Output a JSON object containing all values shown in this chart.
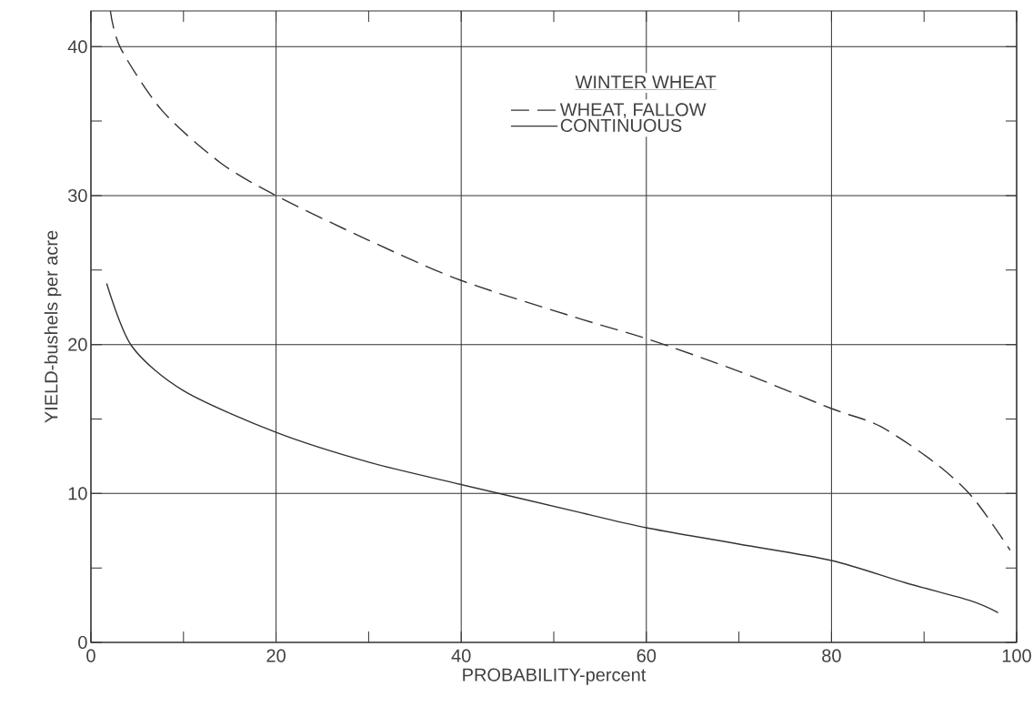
{
  "chart_data": {
    "type": "line",
    "xlabel": "PROBABILITY-percent",
    "ylabel": "YIELD-bushels per acre",
    "legend_title": "WINTER WHEAT",
    "legend": "top",
    "grid": true,
    "xlim": [
      0,
      100
    ],
    "ylim": [
      0,
      42.4
    ],
    "xticks": [
      0,
      20,
      40,
      60,
      80,
      100
    ],
    "yticks": [
      0,
      10,
      20,
      30,
      40
    ],
    "series": [
      {
        "name": "WHEAT, FALLOW",
        "color": "#333333",
        "line_style": "dashed",
        "x": [
          2.1,
          3.2,
          7.7,
          14,
          20,
          30,
          40,
          53,
          60,
          70,
          80,
          85.3,
          91.3,
          95.3,
          99.3
        ],
        "values": [
          42.4,
          39.9,
          35.7,
          32.2,
          30.0,
          27.0,
          24.3,
          21.7,
          20.4,
          18.2,
          15.7,
          14.5,
          12.0,
          9.7,
          6.2
        ]
      },
      {
        "name": "CONTINUOUS",
        "color": "#333333",
        "line_style": "solid",
        "x": [
          1.7,
          4.4,
          10,
          20,
          30,
          40,
          53,
          60,
          70,
          80,
          88,
          95,
          98
        ],
        "values": [
          24.1,
          19.9,
          16.9,
          14.1,
          12.1,
          10.6,
          8.7,
          7.7,
          6.6,
          5.5,
          4.0,
          2.8,
          2.0
        ]
      }
    ]
  }
}
